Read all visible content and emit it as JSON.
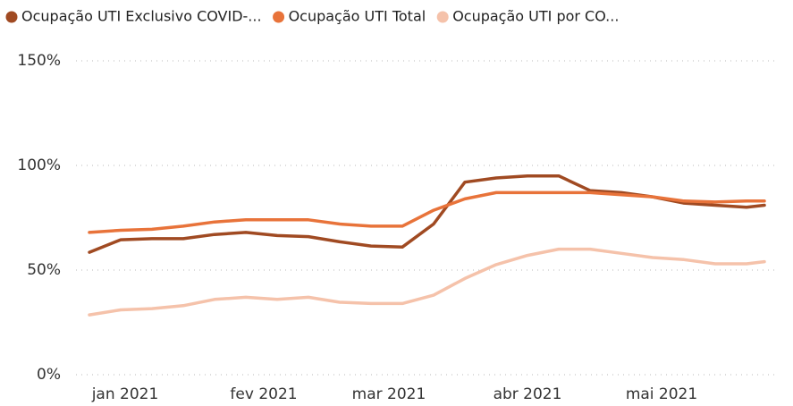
{
  "chart_data": {
    "type": "line",
    "x": [
      -8,
      -1,
      6,
      13,
      20,
      27,
      34,
      41,
      48,
      55,
      62,
      69,
      76,
      83,
      90,
      97,
      104,
      111,
      118,
      125,
      132,
      139,
      143
    ],
    "xlim": [
      -9,
      144
    ],
    "xticks": [
      {
        "value": 0,
        "label": "jan 2021"
      },
      {
        "value": 31,
        "label": "fev 2021"
      },
      {
        "value": 59,
        "label": "mar 2021"
      },
      {
        "value": 90,
        "label": "abr 2021"
      },
      {
        "value": 120,
        "label": "mai 2021"
      }
    ],
    "ylim": [
      0,
      150
    ],
    "yticks": [
      {
        "value": 0,
        "label": "0%"
      },
      {
        "value": 50,
        "label": "50%"
      },
      {
        "value": 100,
        "label": "100%"
      },
      {
        "value": 150,
        "label": "150%"
      }
    ],
    "grid": true,
    "series": [
      {
        "name": "Ocupação UTI Exclusivo COVID-...",
        "color": "#a04a22",
        "values": [
          58.5,
          64.5,
          65,
          65,
          67,
          68,
          66.5,
          66,
          63.5,
          61.5,
          61,
          72,
          92,
          94,
          95,
          95,
          88,
          87,
          85,
          82,
          81,
          80,
          81
        ]
      },
      {
        "name": "Ocupação UTI Total",
        "color": "#e8733a",
        "values": [
          68,
          69,
          69.5,
          71,
          73,
          74,
          74,
          74,
          72,
          71,
          71,
          78.6,
          84,
          87,
          87,
          87,
          87,
          86,
          85,
          83,
          82.5,
          83,
          83
        ]
      },
      {
        "name": "Ocupação UTI por CO...",
        "color": "#f5c2aa",
        "values": [
          28.6,
          31,
          31.6,
          33,
          36,
          37,
          36,
          37,
          34.6,
          34,
          34,
          38,
          46,
          52.6,
          57,
          60,
          60,
          58,
          56,
          55,
          53,
          53,
          54
        ]
      }
    ]
  }
}
